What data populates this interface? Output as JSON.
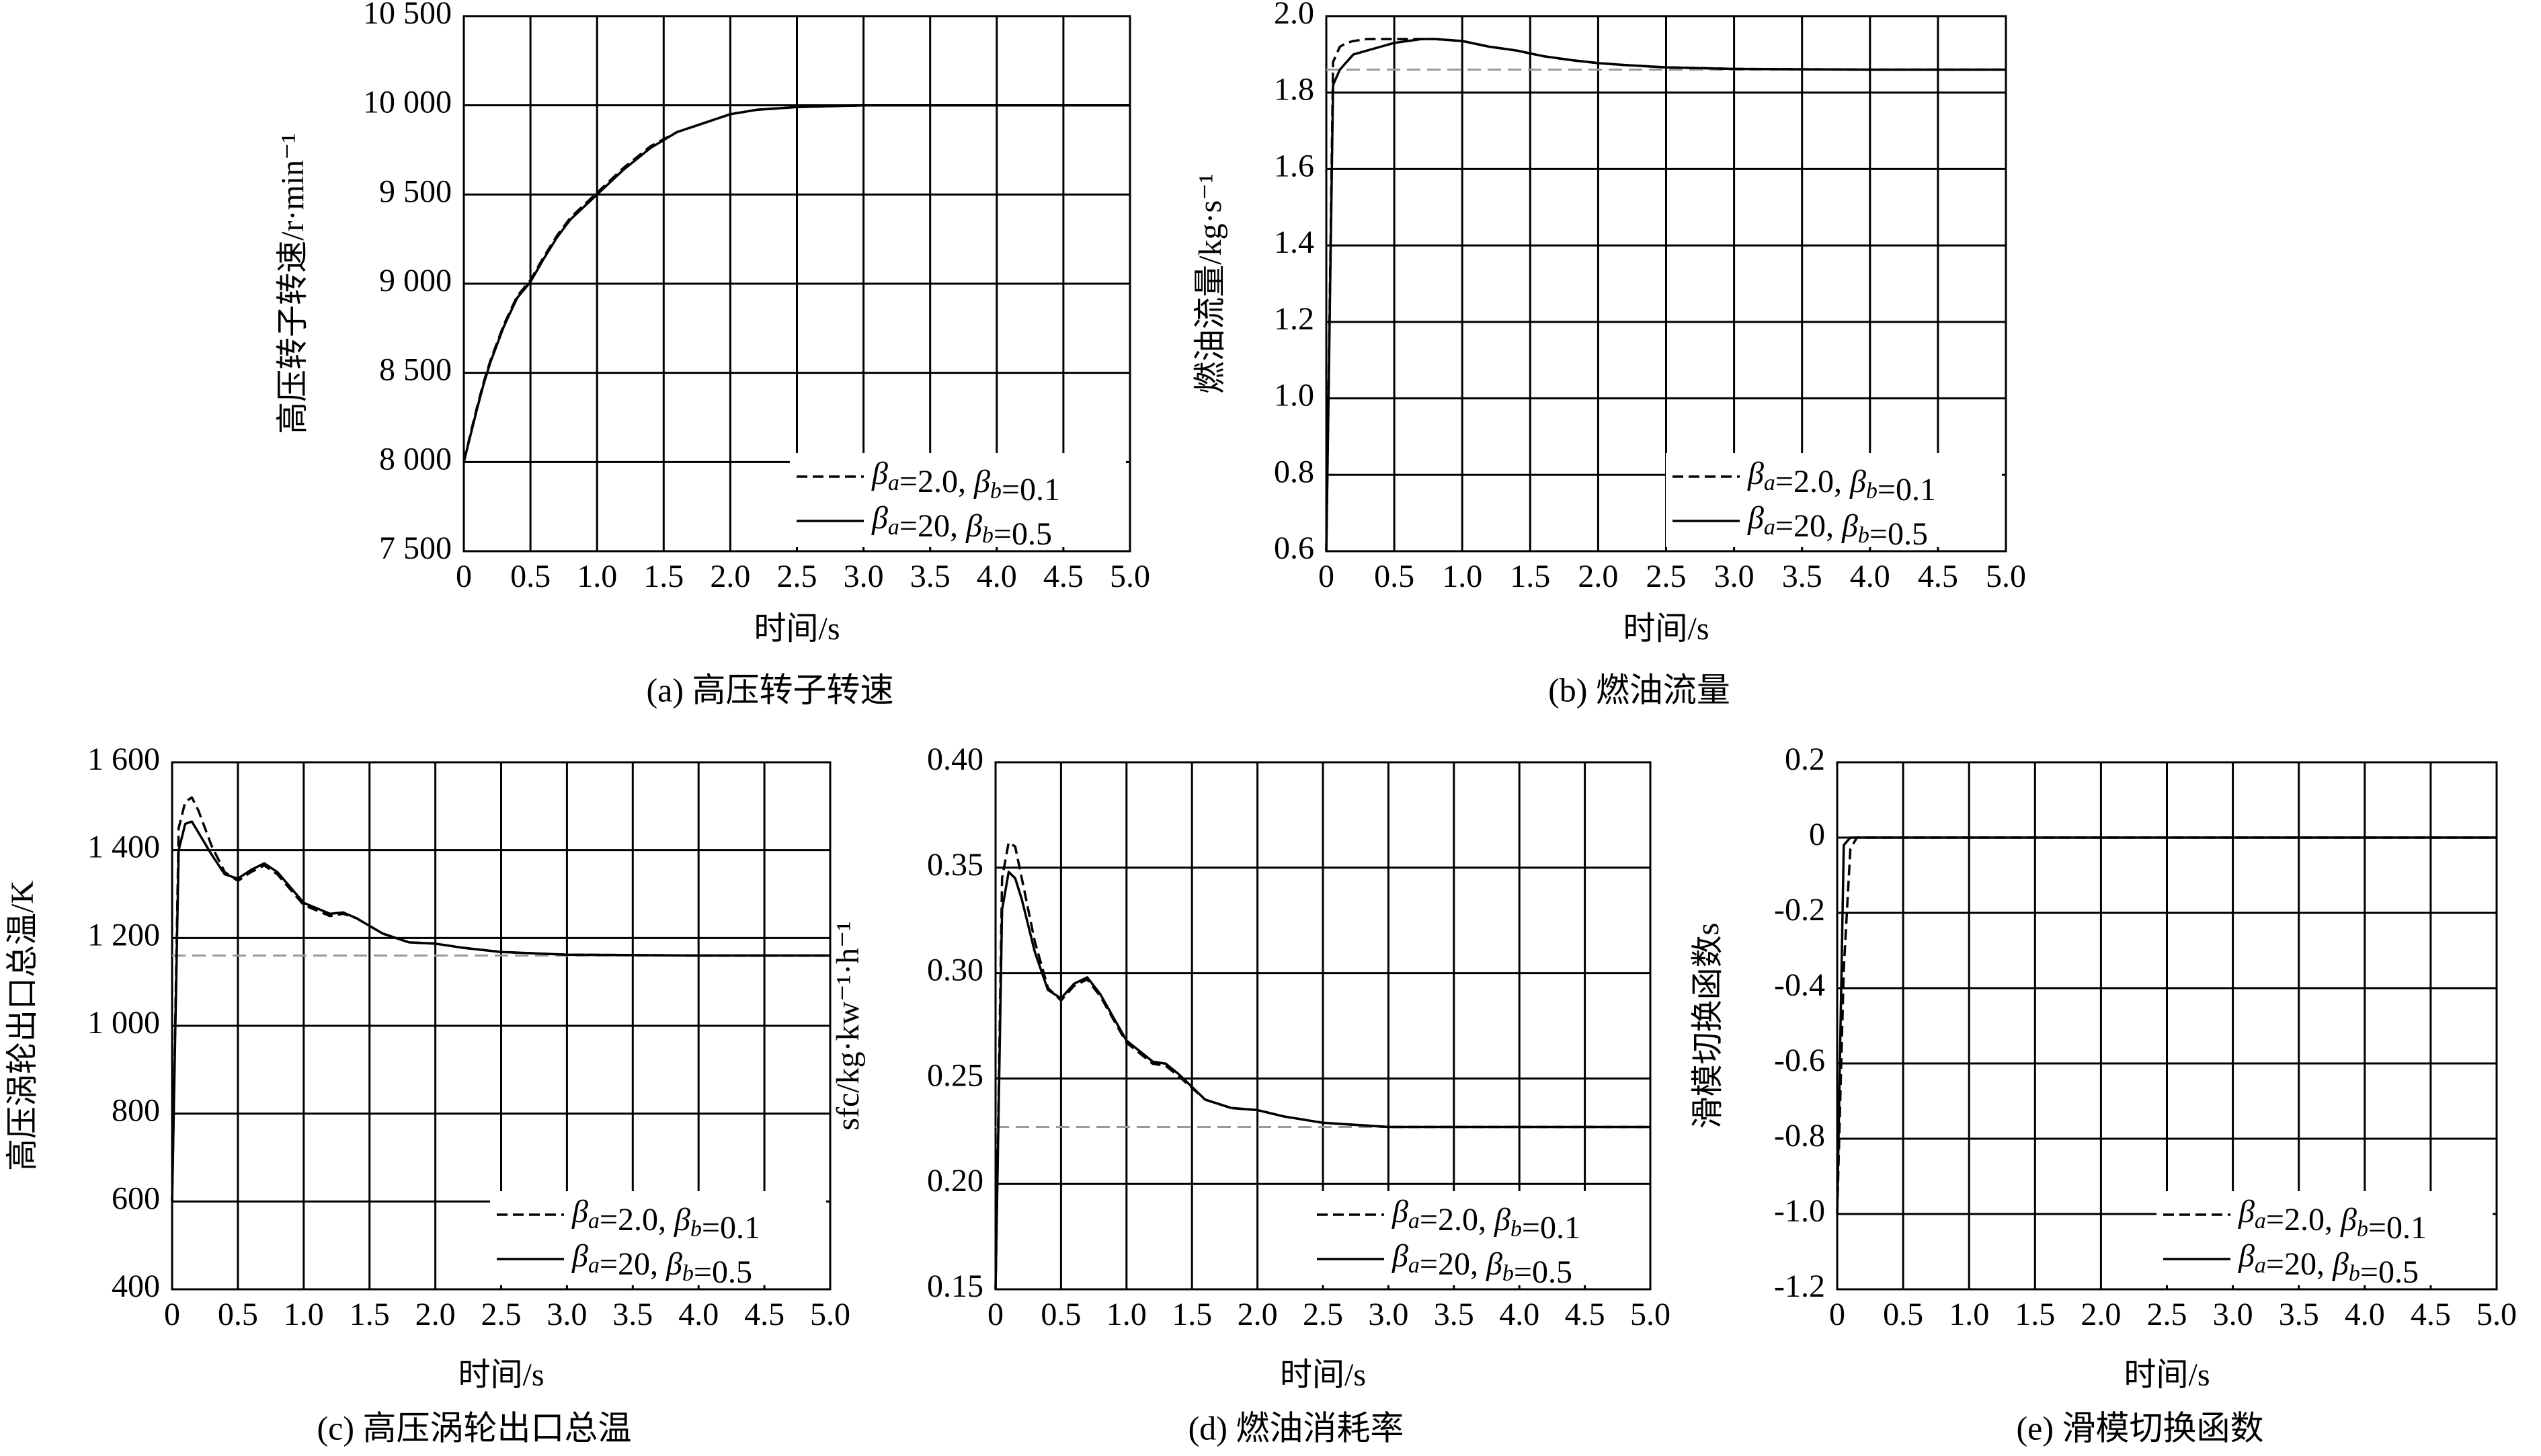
{
  "chart_data": [
    {
      "type": "line",
      "caption": "(a) 高压转子转速",
      "xlabel": "时间/s",
      "ylabel": "高压转子转速/r·min⁻¹",
      "x": [
        0,
        0.05,
        0.1,
        0.15,
        0.2,
        0.3,
        0.4,
        0.5,
        0.6,
        0.7,
        0.8,
        1,
        1.2,
        1.3,
        1.4,
        1.6,
        1.8,
        2,
        2.2,
        2.5,
        3,
        4,
        5
      ],
      "xlim": [
        0,
        5
      ],
      "xticks": [
        0,
        0.5,
        {
          "value": 1,
          "label": "1.0"
        },
        1.5,
        {
          "value": 2,
          "label": "2.0"
        },
        2.5,
        {
          "value": 3,
          "label": "3.0"
        },
        3.5,
        {
          "value": 4,
          "label": "4.0"
        },
        4.5,
        {
          "value": 5,
          "label": "5.0"
        }
      ],
      "ylim": [
        7500,
        10500
      ],
      "yticks": [
        {
          "value": 7500,
          "label": "7 500"
        },
        {
          "value": 8000,
          "label": "8 000"
        },
        {
          "value": 8500,
          "label": "8 500"
        },
        {
          "value": 9000,
          "label": "9 000"
        },
        {
          "value": 9500,
          "label": "9 500"
        },
        {
          "value": 10000,
          "label": "10 000"
        },
        {
          "value": 10500,
          "label": "10 500"
        }
      ],
      "grid": true,
      "legend": "lower right",
      "series": [
        {
          "name": "βa=2.0, βb=0.1",
          "color": "#000000",
          "linestyle": "dashed",
          "values": [
            8000,
            8160,
            8310,
            8450,
            8570,
            8770,
            8930,
            9020,
            9150,
            9270,
            9370,
            9510,
            9650,
            9710,
            9770,
            9850,
            9900,
            9950,
            9975,
            9990,
            10000,
            10000,
            10000
          ]
        },
        {
          "name": "βa=20, βb=0.5",
          "color": "#000000",
          "linestyle": "solid",
          "values": [
            8000,
            8150,
            8300,
            8440,
            8560,
            8760,
            8920,
            9010,
            9140,
            9260,
            9360,
            9500,
            9640,
            9700,
            9760,
            9850,
            9900,
            9950,
            9975,
            9990,
            10000,
            10000,
            10000
          ]
        }
      ]
    },
    {
      "type": "line",
      "caption": "(b) 燃油流量",
      "xlabel": "时间/s",
      "ylabel": "燃油流量/kg·s⁻¹",
      "x": [
        0,
        0.05,
        0.1,
        0.15,
        0.2,
        0.3,
        0.4,
        0.5,
        0.6,
        0.7,
        0.8,
        1,
        1.2,
        1.3,
        1.4,
        1.6,
        1.8,
        2,
        2.2,
        2.5,
        3,
        4,
        5
      ],
      "xlim": [
        0,
        5
      ],
      "xticks": [
        0,
        0.5,
        {
          "value": 1,
          "label": "1.0"
        },
        1.5,
        {
          "value": 2,
          "label": "2.0"
        },
        2.5,
        {
          "value": 3,
          "label": "3.0"
        },
        3.5,
        {
          "value": 4,
          "label": "4.0"
        },
        4.5,
        {
          "value": 5,
          "label": "5.0"
        }
      ],
      "ylim": [
        0.6,
        2
      ],
      "yticks": [
        0.6,
        0.8,
        {
          "value": 1,
          "label": "1.0"
        },
        1.2,
        1.4,
        1.6,
        1.8,
        {
          "value": 2,
          "label": "2.0"
        }
      ],
      "grid": true,
      "legend": "lower right",
      "reference": 1.86,
      "reference_color": "#999999",
      "series": [
        {
          "name": "βa=2.0, βb=0.1",
          "color": "#000000",
          "linestyle": "dashed",
          "values": [
            0.6,
            1.88,
            1.92,
            1.93,
            1.935,
            1.94,
            1.94,
            1.94,
            1.94,
            1.94,
            1.94,
            1.935,
            1.92,
            1.915,
            1.91,
            1.895,
            1.885,
            1.877,
            1.872,
            1.866,
            1.862,
            1.86,
            1.86
          ]
        },
        {
          "name": "βa=20, βb=0.5",
          "color": "#000000",
          "linestyle": "solid",
          "values": [
            0.6,
            1.82,
            1.86,
            1.88,
            1.9,
            1.91,
            1.92,
            1.93,
            1.935,
            1.94,
            1.94,
            1.935,
            1.92,
            1.915,
            1.91,
            1.895,
            1.885,
            1.877,
            1.872,
            1.866,
            1.862,
            1.86,
            1.86
          ]
        }
      ]
    },
    {
      "type": "line",
      "caption": "(c) 高压涡轮出口总温",
      "xlabel": "时间/s",
      "ylabel": "高压涡轮出口总温/K",
      "x": [
        0,
        0.05,
        0.1,
        0.15,
        0.2,
        0.3,
        0.4,
        0.5,
        0.6,
        0.7,
        0.8,
        1,
        1.2,
        1.3,
        1.4,
        1.6,
        1.8,
        2,
        2.2,
        2.5,
        3,
        4,
        5
      ],
      "xlim": [
        0,
        5
      ],
      "xticks": [
        0,
        0.5,
        {
          "value": 1,
          "label": "1.0"
        },
        1.5,
        {
          "value": 2,
          "label": "2.0"
        },
        2.5,
        {
          "value": 3,
          "label": "3.0"
        },
        3.5,
        {
          "value": 4,
          "label": "4.0"
        },
        4.5,
        {
          "value": 5,
          "label": "5.0"
        }
      ],
      "ylim": [
        400,
        1600
      ],
      "yticks": [
        400,
        600,
        800,
        {
          "value": 1000,
          "label": "1 000"
        },
        {
          "value": 1200,
          "label": "1 200"
        },
        {
          "value": 1400,
          "label": "1 400"
        },
        {
          "value": 1600,
          "label": "1 600"
        }
      ],
      "grid": true,
      "legend": "lower right",
      "reference": 1160,
      "reference_color": "#999999",
      "series": [
        {
          "name": "βa=2.0, βb=0.1",
          "color": "#000000",
          "linestyle": "dashed",
          "values": [
            600,
            1450,
            1510,
            1520,
            1490,
            1410,
            1350,
            1330,
            1350,
            1365,
            1345,
            1275,
            1250,
            1255,
            1245,
            1210,
            1190,
            1187,
            1178,
            1168,
            1162,
            1160,
            1160
          ]
        },
        {
          "name": "βa=20, βb=0.5",
          "color": "#000000",
          "linestyle": "solid",
          "values": [
            600,
            1400,
            1460,
            1465,
            1440,
            1390,
            1345,
            1335,
            1355,
            1370,
            1350,
            1280,
            1255,
            1258,
            1245,
            1210,
            1190,
            1187,
            1178,
            1168,
            1162,
            1160,
            1160
          ]
        }
      ]
    },
    {
      "type": "line",
      "caption": "(d) 燃油消耗率",
      "xlabel": "时间/s",
      "ylabel": "sfc/kg·kw⁻¹·h⁻¹",
      "x": [
        0,
        0.05,
        0.1,
        0.15,
        0.2,
        0.3,
        0.4,
        0.5,
        0.6,
        0.7,
        0.8,
        1,
        1.2,
        1.3,
        1.4,
        1.6,
        1.8,
        2,
        2.2,
        2.5,
        3,
        4,
        5
      ],
      "xlim": [
        0,
        5
      ],
      "xticks": [
        0,
        0.5,
        {
          "value": 1,
          "label": "1.0"
        },
        1.5,
        {
          "value": 2,
          "label": "2.0"
        },
        2.5,
        {
          "value": 3,
          "label": "3.0"
        },
        3.5,
        {
          "value": 4,
          "label": "4.0"
        },
        4.5,
        {
          "value": 5,
          "label": "5.0"
        }
      ],
      "ylim": [
        0.15,
        0.4
      ],
      "yticks": [
        0.15,
        {
          "value": 0.2,
          "label": "0.20"
        },
        0.25,
        {
          "value": 0.3,
          "label": "0.30"
        },
        0.35,
        {
          "value": 0.4,
          "label": "0.40"
        }
      ],
      "grid": true,
      "legend": "lower right",
      "reference": 0.227,
      "reference_color": "#999999",
      "series": [
        {
          "name": "βa=2.0, βb=0.1",
          "color": "#000000",
          "linestyle": "dashed",
          "values": [
            0.15,
            0.345,
            0.362,
            0.36,
            0.345,
            0.315,
            0.293,
            0.287,
            0.294,
            0.297,
            0.289,
            0.267,
            0.257,
            0.256,
            0.251,
            0.24,
            0.236,
            0.235,
            0.232,
            0.229,
            0.227,
            0.227,
            0.227
          ]
        },
        {
          "name": "βa=20, βb=0.5",
          "color": "#000000",
          "linestyle": "solid",
          "values": [
            0.15,
            0.33,
            0.348,
            0.345,
            0.335,
            0.31,
            0.292,
            0.288,
            0.295,
            0.298,
            0.29,
            0.268,
            0.258,
            0.257,
            0.252,
            0.24,
            0.236,
            0.235,
            0.232,
            0.229,
            0.227,
            0.227,
            0.227
          ]
        }
      ]
    },
    {
      "type": "line",
      "caption": "(e) 滑模切换函数",
      "xlabel": "时间/s",
      "ylabel": "滑模切换函数s",
      "x": [
        0,
        0.05,
        0.1,
        0.15,
        0.2,
        0.3,
        0.4,
        0.5,
        0.6,
        0.7,
        0.8,
        1,
        1.2,
        1.3,
        1.4,
        1.6,
        1.8,
        2,
        2.2,
        2.5,
        3,
        4,
        5
      ],
      "xlim": [
        0,
        5
      ],
      "xticks": [
        0,
        0.5,
        {
          "value": 1,
          "label": "1.0"
        },
        1.5,
        {
          "value": 2,
          "label": "2.0"
        },
        2.5,
        {
          "value": 3,
          "label": "3.0"
        },
        3.5,
        {
          "value": 4,
          "label": "4.0"
        },
        4.5,
        {
          "value": 5,
          "label": "5.0"
        }
      ],
      "ylim": [
        -1.2,
        0.2
      ],
      "yticks": [
        -1.2,
        {
          "value": -1,
          "label": "-1.0"
        },
        -0.8,
        -0.6,
        -0.4,
        -0.2,
        0,
        0.2
      ],
      "grid": true,
      "legend": "lower right",
      "series": [
        {
          "name": "βa=2.0, βb=0.1",
          "color": "#000000",
          "linestyle": "dashed",
          "values": [
            -1,
            -0.35,
            -0.03,
            0,
            0,
            0,
            0,
            0,
            0,
            0,
            0,
            0,
            0,
            0,
            0,
            0,
            0,
            0,
            0,
            0,
            0,
            0,
            0
          ]
        },
        {
          "name": "βa=20, βb=0.5",
          "color": "#000000",
          "linestyle": "solid",
          "values": [
            -1,
            -0.02,
            0,
            0,
            0,
            0,
            0,
            0,
            0,
            0,
            0,
            0,
            0,
            0,
            0,
            0,
            0,
            0,
            0,
            0,
            0,
            0,
            0
          ]
        }
      ]
    }
  ]
}
